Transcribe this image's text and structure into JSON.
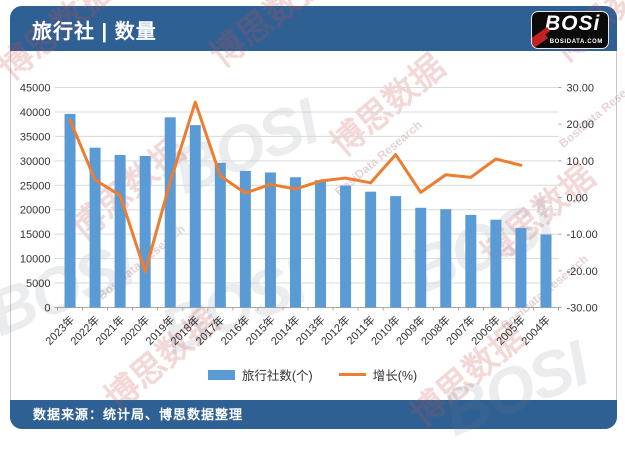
{
  "header": {
    "title": "旅行社 | 数量",
    "logo": {
      "brand": "BOSi",
      "domain": "BOSIDATA.COM"
    }
  },
  "footer": {
    "source": "数据来源：统计局、博思数据整理"
  },
  "watermarks": {
    "cn": "博思数据",
    "en": "BosiData Research",
    "logo": "BOSI"
  },
  "colors": {
    "header_bar": "#2f6093",
    "bar_fill": "#5B9BD5",
    "line_stroke": "#ED7D31",
    "gridline": "#d9d9d9",
    "axis_line": "#a6a6a6",
    "tick_text": "#333333"
  },
  "chart_data": {
    "type": "bar",
    "subtype": "bar+line dual axis",
    "categories": [
      "2023年",
      "2022年",
      "2021年",
      "2020年",
      "2019年",
      "2018年",
      "2017年",
      "2016年",
      "2015年",
      "2014年",
      "2013年",
      "2012年",
      "2011年",
      "2010年",
      "2009年",
      "2008年",
      "2007年",
      "2006年",
      "2005年",
      "2004年"
    ],
    "series": [
      {
        "name": "旅行社数(个)",
        "type": "bar",
        "axis": "left",
        "color": "#5B9BD5",
        "values": [
          39600,
          32690,
          31200,
          31000,
          38900,
          37300,
          29600,
          27939,
          27621,
          26650,
          26054,
          24944,
          23690,
          22784,
          20399,
          20110,
          18943,
          17957,
          16245,
          14927
        ]
      },
      {
        "name": "增长(%)",
        "type": "line",
        "axis": "right",
        "color": "#ED7D31",
        "values": [
          21.1,
          4.8,
          0.6,
          -20.3,
          4.3,
          26.0,
          5.9,
          1.2,
          3.6,
          2.3,
          4.5,
          5.3,
          4.0,
          11.7,
          1.4,
          6.2,
          5.5,
          10.5,
          8.8,
          null
        ]
      }
    ],
    "left_axis": {
      "min": 0,
      "max": 45000,
      "step": 5000
    },
    "right_axis": {
      "min": -30,
      "max": 30,
      "step": 10,
      "decimals": 2
    },
    "grid": true,
    "legend_position": "bottom"
  }
}
